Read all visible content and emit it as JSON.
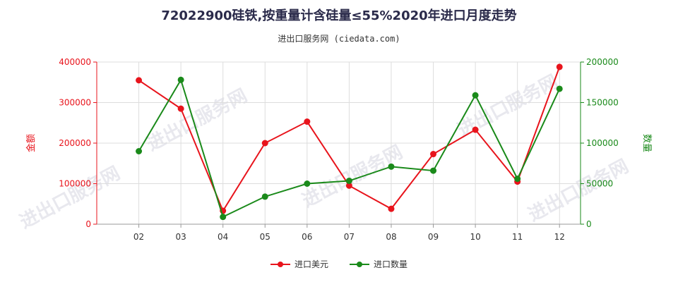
{
  "chart_data": {
    "type": "line",
    "title": "72022900硅铁,按重量计含硅量≤55%2020年进口月度走势",
    "subtitle": "进出口服务网 (ciedata.com)",
    "categories": [
      "02",
      "03",
      "04",
      "05",
      "06",
      "07",
      "08",
      "09",
      "10",
      "11",
      "12"
    ],
    "y_left": {
      "label": "金额",
      "ylim": [
        0,
        400000
      ],
      "ticks": [
        "0",
        "100000",
        "200000",
        "300000",
        "400000"
      ],
      "color": "#e8141c"
    },
    "y_right": {
      "label": "数量",
      "ylim": [
        0,
        200000
      ],
      "ticks": [
        "0",
        "50000",
        "100000",
        "150000",
        "200000"
      ],
      "color": "#1a8a1a"
    },
    "series": [
      {
        "name": "进口美元",
        "axis": "left",
        "color": "#e8141c",
        "values": [
          355000,
          285000,
          33000,
          200000,
          253000,
          95000,
          38000,
          173000,
          233000,
          105000,
          388000
        ]
      },
      {
        "name": "进口数量",
        "axis": "right",
        "color": "#1a8a1a",
        "values": [
          90000,
          178000,
          9000,
          34000,
          50000,
          53500,
          71000,
          66000,
          159000,
          56000,
          167000
        ]
      }
    ],
    "grid": true,
    "legend_position": "bottom"
  },
  "watermark_text": "进出口服务网"
}
